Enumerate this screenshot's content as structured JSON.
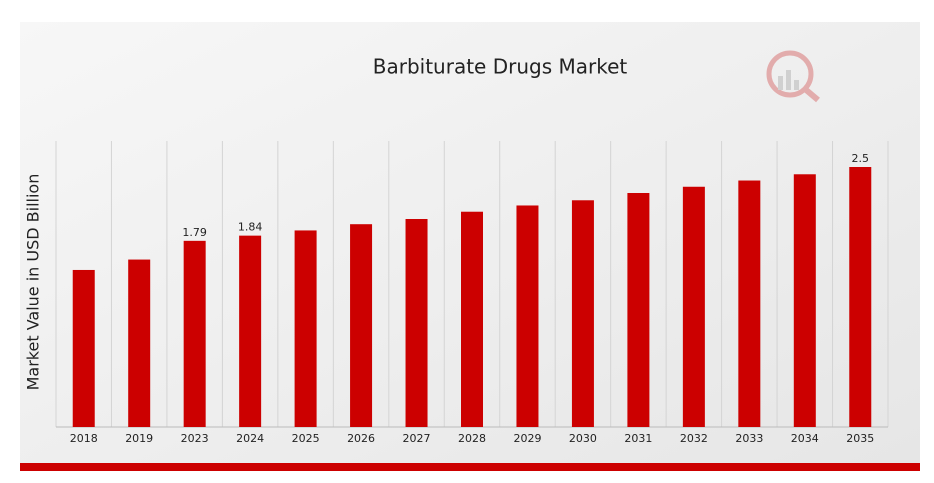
{
  "chart_data": {
    "type": "bar",
    "title": "Barbiturate Drugs Market",
    "y_label": "Market Value in USD Billion",
    "categories": [
      "2018",
      "2019",
      "2023",
      "2024",
      "2025",
      "2026",
      "2027",
      "2028",
      "2029",
      "2030",
      "2031",
      "2032",
      "2033",
      "2034",
      "2035"
    ],
    "values": [
      1.51,
      1.61,
      1.79,
      1.84,
      1.89,
      1.95,
      2.0,
      2.07,
      2.13,
      2.18,
      2.25,
      2.31,
      2.37,
      2.43,
      2.5
    ],
    "value_labels": [
      null,
      null,
      "1.79",
      "1.84",
      null,
      null,
      null,
      null,
      null,
      null,
      null,
      null,
      null,
      null,
      "2.5"
    ],
    "color": "#cc0000",
    "ylim": [
      0,
      2.75
    ],
    "grid": true
  }
}
